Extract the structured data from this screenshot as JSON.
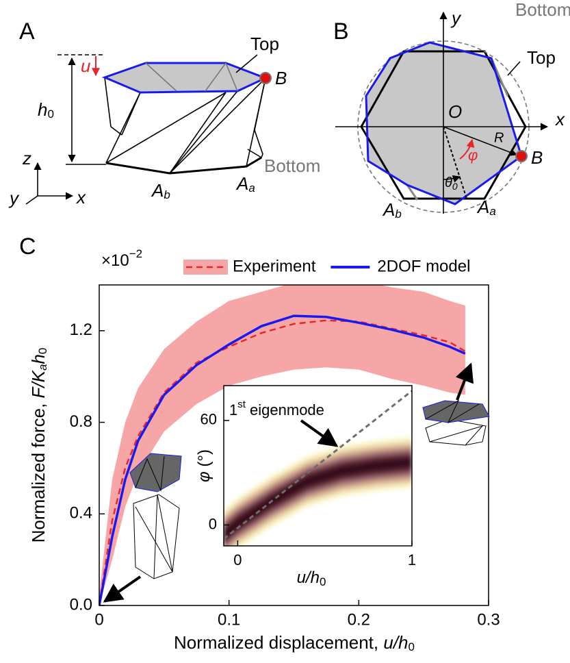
{
  "panel_labels": [
    "A",
    "B",
    "C"
  ],
  "diagram_a": {
    "u": "u",
    "top": "Top",
    "point": "B",
    "h": [
      "h",
      "0"
    ],
    "z": "z",
    "y": "y",
    "x": "x",
    "bottom": "Bottom",
    "ab": [
      "A",
      "b"
    ],
    "aa": [
      "A",
      "a"
    ]
  },
  "diagram_b": {
    "y": "y",
    "bottom": "Bottom",
    "top": "Top",
    "x": "x",
    "origin": "O",
    "radius": "R",
    "angle": "φ",
    "point": "B",
    "theta": [
      "θ",
      "0"
    ],
    "ab": [
      "A",
      "b"
    ],
    "aa": [
      "A",
      "a"
    ]
  },
  "chart_data": [
    {
      "type": "line",
      "xlabel": [
        "Normalized displacement, ",
        "u/h",
        "0"
      ],
      "ylabel": [
        "Normalized force, ",
        "F/K",
        "a",
        "h",
        "0"
      ],
      "scale_label": [
        "×10",
        "−2"
      ],
      "x": [
        0,
        0.01,
        0.02,
        0.03,
        0.05,
        0.075,
        0.1,
        0.125,
        0.15,
        0.175,
        0.2,
        0.225,
        0.25,
        0.27,
        0.282
      ],
      "series": [
        {
          "name": "Experiment",
          "color": "#e8262a",
          "dash": true,
          "band_color": "#f7a6a8",
          "values": [
            0,
            0.37,
            0.6,
            0.74,
            0.93,
            1.06,
            1.13,
            1.19,
            1.23,
            1.245,
            1.24,
            1.21,
            1.18,
            1.15,
            1.11
          ],
          "upper": [
            0.05,
            0.55,
            0.8,
            0.95,
            1.12,
            1.24,
            1.33,
            1.37,
            1.41,
            1.42,
            1.42,
            1.39,
            1.37,
            1.33,
            1.31
          ],
          "lower": [
            0,
            0.2,
            0.43,
            0.58,
            0.76,
            0.88,
            0.96,
            1.0,
            1.03,
            1.04,
            1.03,
            0.99,
            0.96,
            0.93,
            0.92
          ]
        },
        {
          "name": "2DOF model",
          "color": "#1a1aee",
          "dash": false,
          "values": [
            0,
            0.3,
            0.55,
            0.72,
            0.92,
            1.05,
            1.14,
            1.22,
            1.265,
            1.26,
            1.235,
            1.205,
            1.17,
            1.13,
            1.1
          ]
        }
      ],
      "legend": "top",
      "xlim": [
        0,
        0.3
      ],
      "ylim": [
        0,
        1.4
      ],
      "xticks": [
        0,
        0.1,
        0.2,
        0.3
      ],
      "yticks": [
        {
          "value": 0,
          "label": "0.0"
        },
        0.4,
        0.8,
        1.2
      ]
    },
    {
      "type": "density",
      "xlabel": [
        "u/h",
        "0"
      ],
      "ylabel": [
        "φ",
        " (°)"
      ],
      "annotation": [
        "1",
        "st",
        " eigenmode"
      ],
      "x": [
        -0.08,
        0,
        0.2,
        0.4,
        0.6,
        0.8,
        1.0
      ],
      "series": [
        {
          "values": [
            -6,
            1,
            14,
            25,
            31,
            34,
            36
          ]
        }
      ],
      "spread": 15,
      "colormap": [
        "#fbf7cf",
        "#ecd4a8",
        "#c99f89",
        "#94606a",
        "#5c2532",
        "#34101a"
      ],
      "reference_line": {
        "x": [
          -0.08,
          1.0
        ],
        "values": [
          -8,
          77
        ],
        "color": "#6e6e6e"
      },
      "xlim": [
        -0.08,
        1.0
      ],
      "ylim": [
        -12,
        80
      ],
      "xticks": [
        0,
        1
      ],
      "yticks": [
        0,
        60
      ]
    }
  ]
}
